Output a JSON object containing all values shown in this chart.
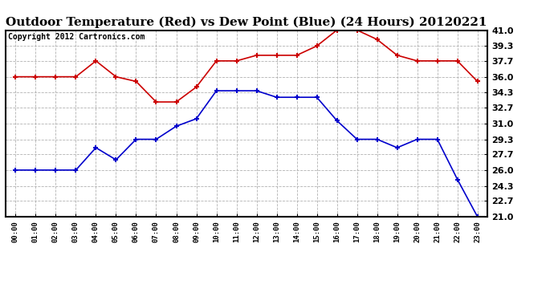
{
  "title": "Outdoor Temperature (Red) vs Dew Point (Blue) (24 Hours) 20120221",
  "copyright": "Copyright 2012 Cartronics.com",
  "hours": [
    "00:00",
    "01:00",
    "02:00",
    "03:00",
    "04:00",
    "05:00",
    "06:00",
    "07:00",
    "08:00",
    "09:00",
    "10:00",
    "11:00",
    "12:00",
    "13:00",
    "14:00",
    "15:00",
    "16:00",
    "17:00",
    "18:00",
    "19:00",
    "20:00",
    "21:00",
    "22:00",
    "23:00"
  ],
  "temp_red": [
    36.0,
    36.0,
    36.0,
    36.0,
    37.7,
    36.0,
    35.5,
    33.3,
    33.3,
    34.9,
    37.7,
    37.7,
    38.3,
    38.3,
    38.3,
    39.3,
    41.0,
    41.0,
    40.0,
    38.3,
    37.7,
    37.7,
    37.7,
    35.5
  ],
  "dew_blue": [
    26.0,
    26.0,
    26.0,
    26.0,
    28.4,
    27.1,
    29.3,
    29.3,
    30.7,
    31.5,
    34.5,
    34.5,
    34.5,
    33.8,
    33.8,
    33.8,
    31.3,
    29.3,
    29.3,
    28.4,
    29.3,
    29.3,
    25.0,
    21.0
  ],
  "ylim": [
    21.0,
    41.0
  ],
  "yticks": [
    21.0,
    22.7,
    24.3,
    26.0,
    27.7,
    29.3,
    31.0,
    32.7,
    34.3,
    36.0,
    37.7,
    39.3,
    41.0
  ],
  "red_color": "#cc0000",
  "blue_color": "#0000cc",
  "bg_color": "#ffffff",
  "grid_color": "#aaaaaa",
  "title_fontsize": 11,
  "copyright_fontsize": 7
}
